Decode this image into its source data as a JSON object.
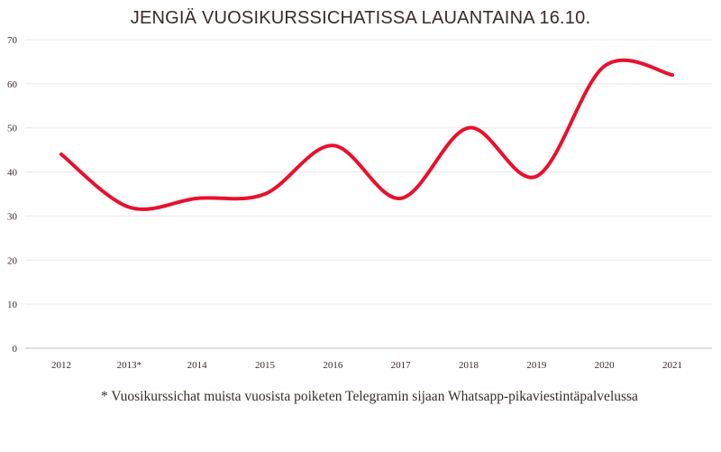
{
  "chart_data": {
    "type": "line",
    "title": "JENGIÄ VUOSIKURSSICHATISSA LAUANTAINA 16.10.",
    "categories": [
      "2012",
      "2013*",
      "2014",
      "2015",
      "2016",
      "2017",
      "2018",
      "2019",
      "2020",
      "2021"
    ],
    "series": [
      {
        "name": "",
        "values": [
          44,
          32,
          34,
          35,
          46,
          34,
          50,
          39,
          64,
          62
        ]
      }
    ],
    "yticks": [
      0,
      10,
      20,
      30,
      40,
      50,
      60,
      70
    ],
    "ylim": [
      0,
      70
    ],
    "xlabel": "",
    "ylabel": "",
    "grid": true,
    "line_color": "#e8112d",
    "footnote": "* Vuosikurssichat muista vuosista poiketen Telegramin sijaan Whatsapp-pikaviestintäpalvelussa"
  }
}
